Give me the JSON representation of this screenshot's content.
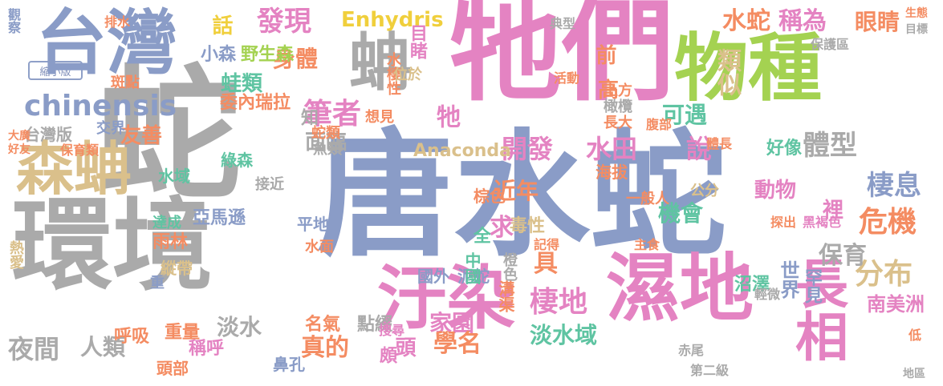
{
  "colors": {
    "gray": "#aaaaaa",
    "blue": "#8a9cc7",
    "pink": "#e483c2",
    "green": "#a4d251",
    "tan": "#dac08b",
    "orange": "#f48c62",
    "teal": "#5fc4a2",
    "yellow": "#f0cf3c",
    "lgray": "#c6c6c6"
  },
  "button": {
    "label": "縮小版"
  },
  "words": [
    {
      "text": "唐水蛇",
      "c": "blue"
    },
    {
      "text": "牠們",
      "c": "pink"
    },
    {
      "text": "蛇",
      "c": "gray"
    },
    {
      "text": "環境",
      "c": "gray"
    },
    {
      "text": "台灣",
      "c": "blue"
    },
    {
      "text": "物種",
      "c": "green"
    },
    {
      "text": "濕地",
      "c": "pink"
    },
    {
      "text": "汙染",
      "c": "pink"
    },
    {
      "text": "森蚺",
      "c": "tan"
    },
    {
      "text": "長相",
      "c": "pink"
    },
    {
      "text": "蚺",
      "c": "gray"
    },
    {
      "text": "chinensis",
      "c": "blue"
    },
    {
      "text": "發現",
      "c": "pink"
    },
    {
      "text": "Enhydris",
      "c": "yellow"
    },
    {
      "text": "水蛇",
      "c": "orange"
    },
    {
      "text": "稱為",
      "c": "pink"
    },
    {
      "text": "眼睛",
      "c": "orange"
    },
    {
      "text": "危機",
      "c": "orange"
    },
    {
      "text": "棲息",
      "c": "blue"
    },
    {
      "text": "分布",
      "c": "tan"
    },
    {
      "text": "體型",
      "c": "gray"
    },
    {
      "text": "說",
      "c": "pink"
    },
    {
      "text": "水田",
      "c": "pink"
    },
    {
      "text": "開發",
      "c": "pink"
    },
    {
      "text": "筆者",
      "c": "pink"
    },
    {
      "text": "身體",
      "c": "orange"
    },
    {
      "text": "話",
      "c": "yellow"
    },
    {
      "text": "蛙類",
      "c": "teal"
    },
    {
      "text": "台灣版",
      "c": "gray"
    },
    {
      "text": "友善",
      "c": "orange"
    },
    {
      "text": "棲地",
      "c": "pink"
    },
    {
      "text": "淡水域",
      "c": "teal"
    },
    {
      "text": "機會",
      "c": "teal"
    },
    {
      "text": "保育",
      "c": "gray"
    },
    {
      "text": "家園",
      "c": "pink"
    },
    {
      "text": "學名",
      "c": "orange"
    },
    {
      "text": "夜間",
      "c": "gray"
    },
    {
      "text": "淡水",
      "c": "gray"
    },
    {
      "text": "人類",
      "c": "gray"
    },
    {
      "text": "真的",
      "c": "orange"
    },
    {
      "text": "頭",
      "c": "pink"
    },
    {
      "text": "具",
      "c": "orange"
    },
    {
      "text": "近年",
      "c": "orange"
    },
    {
      "text": "可遇",
      "c": "teal"
    },
    {
      "text": "類似",
      "c": "tan"
    },
    {
      "text": "前",
      "c": "orange"
    },
    {
      "text": "高",
      "c": "orange"
    },
    {
      "text": "動物",
      "c": "pink"
    },
    {
      "text": "好像",
      "c": "teal"
    },
    {
      "text": "面臨",
      "c": "gray"
    },
    {
      "text": "Anaconda",
      "c": "tan"
    },
    {
      "text": "牠",
      "c": "pink"
    },
    {
      "text": "裡",
      "c": "pink"
    },
    {
      "text": "南美洲",
      "c": "pink"
    },
    {
      "text": "罕見",
      "c": "blue"
    },
    {
      "text": "世界",
      "c": "blue"
    },
    {
      "text": "沼澤",
      "c": "teal"
    },
    {
      "text": "亞馬遜",
      "c": "blue"
    },
    {
      "text": "委內瑞拉",
      "c": "orange"
    },
    {
      "text": "野生森",
      "c": "green"
    },
    {
      "text": "小森",
      "c": "blue"
    },
    {
      "text": "雨林",
      "c": "orange"
    },
    {
      "text": "重量",
      "c": "orange"
    },
    {
      "text": "呼吸",
      "c": "orange"
    },
    {
      "text": "稱呼",
      "c": "pink"
    },
    {
      "text": "頭部",
      "c": "orange"
    },
    {
      "text": "鼻孔",
      "c": "blue"
    },
    {
      "text": "名氣",
      "c": "orange"
    },
    {
      "text": "點綴",
      "c": "gray"
    },
    {
      "text": "頗",
      "c": "pink"
    },
    {
      "text": "泥蛇",
      "c": "blue"
    },
    {
      "text": "國外",
      "c": "blue"
    },
    {
      "text": "溝渠",
      "c": "orange"
    },
    {
      "text": "中國",
      "c": "teal"
    },
    {
      "text": "全",
      "c": "teal"
    },
    {
      "text": "橙色",
      "c": "gray"
    },
    {
      "text": "毒性",
      "c": "tan"
    },
    {
      "text": "求",
      "c": "pink"
    },
    {
      "text": "棕色",
      "c": "orange"
    },
    {
      "text": "海拔",
      "c": "orange"
    },
    {
      "text": "一般人",
      "c": "orange"
    },
    {
      "text": "公分",
      "c": "tan"
    },
    {
      "text": "長大",
      "c": "orange"
    },
    {
      "text": "橄欖",
      "c": "gray"
    },
    {
      "text": "上方",
      "c": "orange"
    },
    {
      "text": "目睹",
      "c": "pink"
    },
    {
      "text": "水棲性",
      "c": "orange"
    },
    {
      "text": "位於",
      "c": "tan"
    },
    {
      "text": "想見",
      "c": "orange"
    },
    {
      "text": "知",
      "c": "gray"
    },
    {
      "text": "水域",
      "c": "teal"
    },
    {
      "text": "達成",
      "c": "teal"
    },
    {
      "text": "縱帶",
      "c": "tan"
    },
    {
      "text": "重",
      "c": "blue"
    },
    {
      "text": "平地",
      "c": "blue"
    },
    {
      "text": "水面",
      "c": "orange"
    },
    {
      "text": "綠森",
      "c": "teal"
    },
    {
      "text": "接近",
      "c": "gray"
    },
    {
      "text": "魚類",
      "c": "gray"
    },
    {
      "text": "蛇類",
      "c": "orange"
    },
    {
      "text": "斑點",
      "c": "orange"
    },
    {
      "text": "交界",
      "c": "blue"
    },
    {
      "text": "保育類",
      "c": "orange"
    },
    {
      "text": "大廣",
      "c": "orange"
    },
    {
      "text": "好友",
      "c": "orange"
    },
    {
      "text": "觀察",
      "c": "blue"
    },
    {
      "text": "排水",
      "c": "orange"
    },
    {
      "text": "體長",
      "c": "orange"
    },
    {
      "text": "黑褐色",
      "c": "pink"
    },
    {
      "text": "探出",
      "c": "orange"
    },
    {
      "text": "輕微",
      "c": "gray"
    },
    {
      "text": "保護區",
      "c": "gray"
    },
    {
      "text": "活動",
      "c": "orange"
    },
    {
      "text": "典型",
      "c": "gray"
    },
    {
      "text": "腹部",
      "c": "orange"
    },
    {
      "text": "第二級",
      "c": "gray"
    },
    {
      "text": "主食",
      "c": "orange"
    },
    {
      "text": "熱愛",
      "c": "tan"
    },
    {
      "text": "赤尾",
      "c": "gray"
    },
    {
      "text": "搜尋",
      "c": "pink"
    },
    {
      "text": "記得",
      "c": "orange"
    },
    {
      "text": "生態",
      "c": "orange"
    },
    {
      "text": "目標",
      "c": "gray"
    },
    {
      "text": "地區",
      "c": "gray"
    },
    {
      "text": "低",
      "c": "orange"
    }
  ]
}
